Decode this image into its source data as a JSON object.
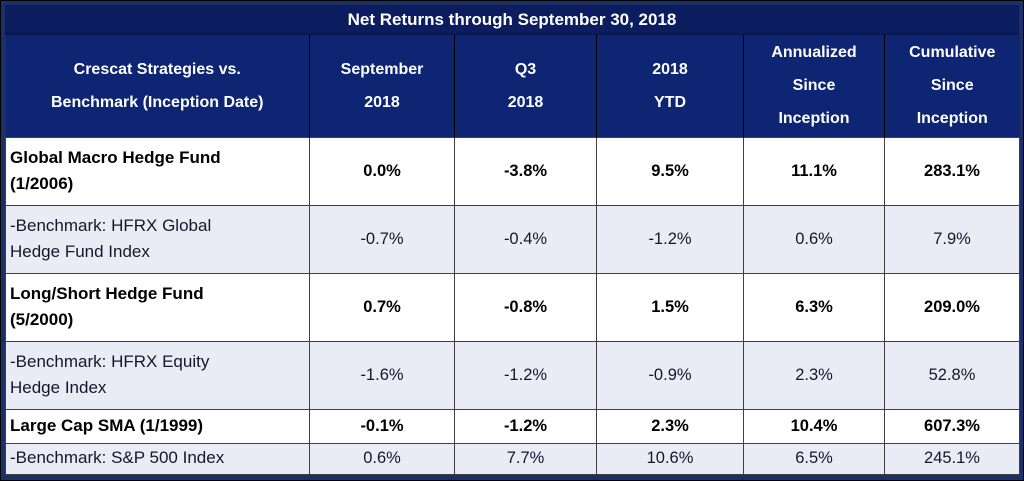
{
  "title": "Net Returns through September 30, 2018",
  "columns": [
    "Crescat Strategies vs.\nBenchmark (Inception Date)",
    "September\n2018",
    "Q3\n2018",
    "2018\nYTD",
    "Annualized\nSince\nInception",
    "Cumulative\nSince\nInception"
  ],
  "rows": [
    {
      "label": "Global Macro Hedge Fund\n(1/2006)",
      "type": "fund",
      "values": [
        "0.0%",
        "-3.8%",
        "9.5%",
        "11.1%",
        "283.1%"
      ]
    },
    {
      "label": "-Benchmark: HFRX Global\nHedge Fund Index",
      "type": "benchmark",
      "values": [
        "-0.7%",
        "-0.4%",
        "-1.2%",
        "0.6%",
        "7.9%"
      ]
    },
    {
      "label": "Long/Short Hedge Fund\n(5/2000)",
      "type": "fund",
      "values": [
        "0.7%",
        "-0.8%",
        "1.5%",
        "6.3%",
        "209.0%"
      ]
    },
    {
      "label": "-Benchmark: HFRX Equity\nHedge Index",
      "type": "benchmark",
      "values": [
        "-1.6%",
        "-1.2%",
        "-0.9%",
        "2.3%",
        "52.8%"
      ]
    },
    {
      "label": "Large Cap SMA (1/1999)",
      "type": "fund",
      "values": [
        "-0.1%",
        "-1.2%",
        "2.3%",
        "10.4%",
        "607.3%"
      ]
    },
    {
      "label": "-Benchmark: S&P 500 Index",
      "type": "benchmark",
      "values": [
        "0.6%",
        "7.7%",
        "10.6%",
        "6.5%",
        "245.1%"
      ]
    }
  ],
  "colors": {
    "title_bg": "#0B1D5E",
    "header_bg": "#0D2573",
    "frame_border": "#1B3166",
    "benchmark_row_bg": "#E9EBF5",
    "fund_row_bg": "#FFFFFF",
    "header_text": "#FFFFFF",
    "body_text": "#000000",
    "grid_line": "#404040"
  }
}
